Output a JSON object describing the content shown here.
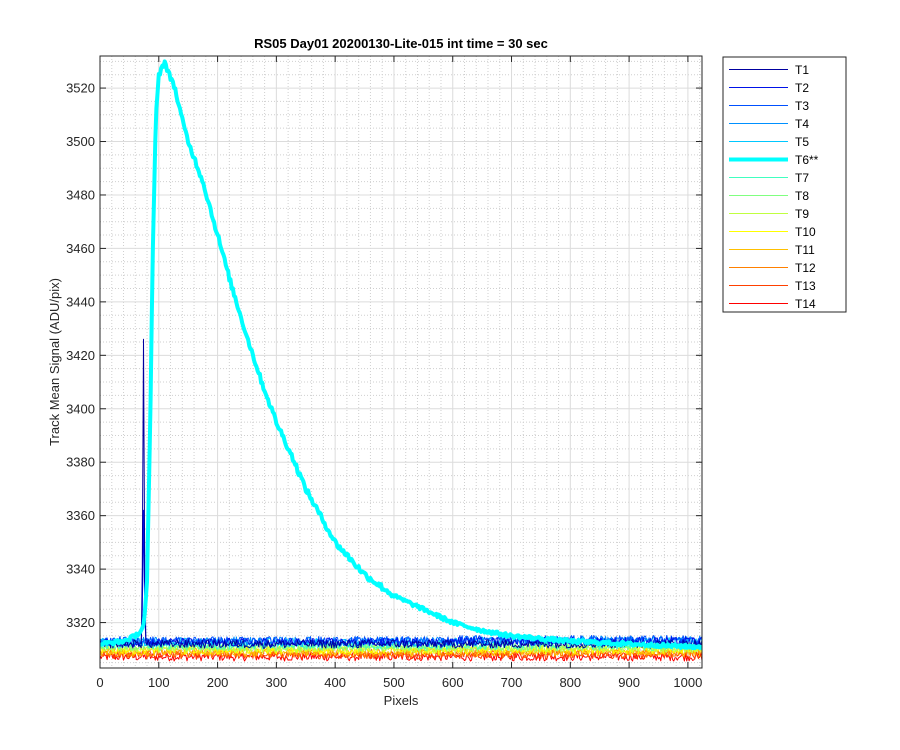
{
  "chart_data": {
    "type": "line",
    "title": "RS05 Day01 20200130-Lite-015 int time = 30 sec",
    "xlabel": "Pixels",
    "ylabel": "Track Mean Signal (ADU/pix)",
    "xlim": [
      0,
      1024
    ],
    "ylim": [
      3303,
      3532
    ],
    "xticks": [
      0,
      100,
      200,
      300,
      400,
      500,
      600,
      700,
      800,
      900,
      1000
    ],
    "xtick_labels": [
      "0",
      "100",
      "200",
      "300",
      "400",
      "500",
      "600",
      "700",
      "800",
      "900",
      "1000"
    ],
    "yticks": [
      3320,
      3340,
      3360,
      3380,
      3400,
      3420,
      3440,
      3460,
      3480,
      3500,
      3520
    ],
    "ytick_labels": [
      "3320",
      "3340",
      "3360",
      "3380",
      "3400",
      "3420",
      "3440",
      "3460",
      "3480",
      "3500",
      "3520"
    ],
    "grid": true,
    "legend_position": "outside-right",
    "series": [
      {
        "name": "T1",
        "color": "#0000a0",
        "width": 1,
        "baseline": 3312.0,
        "spike_value": 3426
      },
      {
        "name": "T2",
        "color": "#0012e8",
        "width": 1,
        "baseline": 3312.6,
        "spike_value": 3362
      },
      {
        "name": "T3",
        "color": "#0050ff",
        "width": 1,
        "baseline": 3313.2
      },
      {
        "name": "T4",
        "color": "#0090ff",
        "width": 1,
        "baseline": 3313.0
      },
      {
        "name": "T5",
        "color": "#00c8ff",
        "width": 1,
        "baseline": 3312.6
      },
      {
        "name": "T6**",
        "color": "#00ffff",
        "width": 4,
        "highlight": true,
        "x": [
          0,
          40,
          60,
          70,
          75,
          80,
          85,
          90,
          95,
          100,
          110,
          115,
          125,
          140,
          150,
          175,
          200,
          225,
          250,
          275,
          300,
          325,
          350,
          375,
          400,
          450,
          500,
          550,
          600,
          650,
          700,
          750,
          800,
          850,
          900,
          950,
          1000,
          1024
        ],
        "y": [
          3312,
          3313,
          3315,
          3317,
          3320,
          3335,
          3390,
          3460,
          3510,
          3525,
          3530,
          3526,
          3522,
          3508,
          3500,
          3485,
          3465,
          3445,
          3427,
          3410,
          3395,
          3383,
          3370,
          3360,
          3350,
          3338,
          3330,
          3325,
          3320,
          3317,
          3315,
          3314,
          3313,
          3312.5,
          3312,
          3311.5,
          3311,
          3311
        ]
      },
      {
        "name": "T7",
        "color": "#40ffc0",
        "width": 1,
        "baseline": 3311.6
      },
      {
        "name": "T8",
        "color": "#80ff80",
        "width": 1,
        "baseline": 3311.0
      },
      {
        "name": "T9",
        "color": "#c0ff40",
        "width": 1,
        "baseline": 3310.4
      },
      {
        "name": "T10",
        "color": "#ffff00",
        "width": 1,
        "baseline": 3309.8
      },
      {
        "name": "T11",
        "color": "#ffc000",
        "width": 1,
        "baseline": 3309.2
      },
      {
        "name": "T12",
        "color": "#ff8000",
        "width": 1,
        "baseline": 3308.6
      },
      {
        "name": "T13",
        "color": "#ff4000",
        "width": 1,
        "baseline": 3308.0
      },
      {
        "name": "T14",
        "color": "#ff0000",
        "width": 1,
        "baseline": 3307.2
      }
    ]
  }
}
